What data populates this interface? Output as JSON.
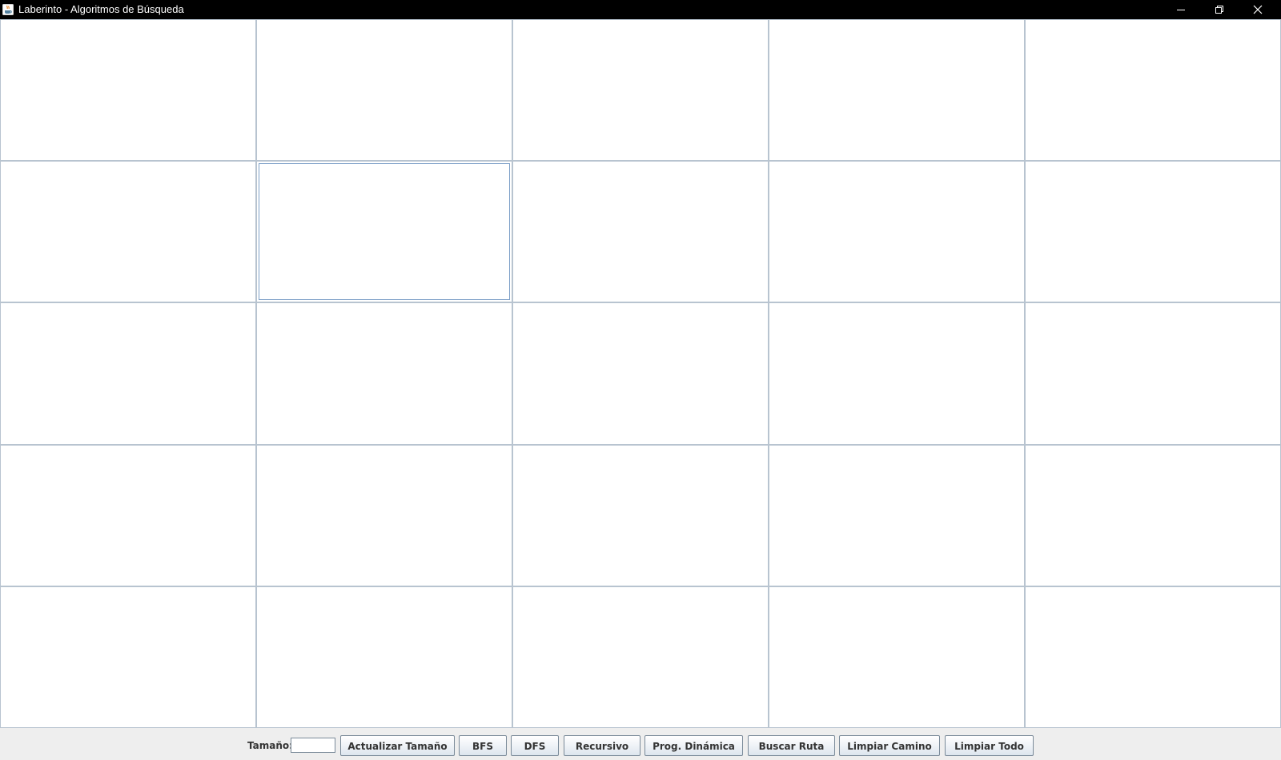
{
  "window": {
    "title": "Laberinto - Algoritmos de Búsqueda",
    "app_icon": "java-cup-icon",
    "controls": [
      "minimize-icon",
      "restore-icon",
      "close-icon"
    ]
  },
  "maze": {
    "rows": 5,
    "cols": 5,
    "focused_cell": {
      "row": 1,
      "col": 1
    }
  },
  "controls": {
    "size_label": "Tamaño:",
    "size_value": "",
    "buttons": {
      "update_size": "Actualizar Tamaño",
      "bfs": "BFS",
      "dfs": "DFS",
      "recursive": "Recursivo",
      "dynamic_programming": "Prog. Dinámica",
      "find_route": "Buscar Ruta",
      "clear_path": "Limpiar Camino",
      "clear_all": "Limpiar Todo"
    }
  }
}
